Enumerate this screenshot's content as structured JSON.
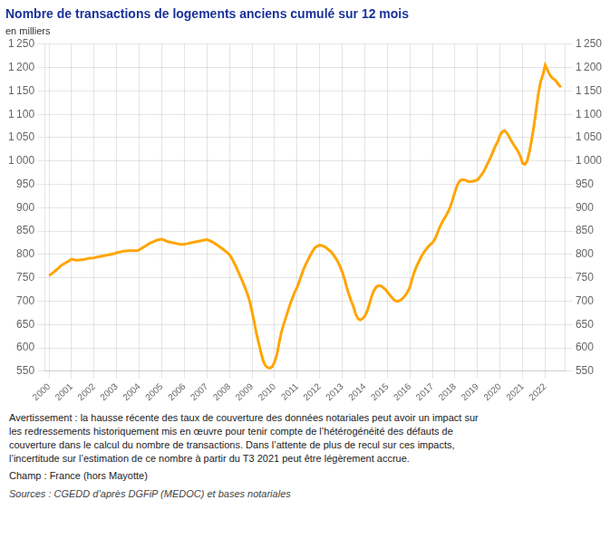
{
  "chart_data": {
    "type": "line",
    "title": "Nombre de transactions de logements anciens cumulé sur 12 mois",
    "ylabel": "en milliers",
    "annotations": [
      "Avertissement : la hausse récente des taux de couverture des données notariales peut avoir un impact sur\nles redressements historiquement mis en œuvre pour tenir compte de l’hétérogénéité des défauts de\ncouverture dans le calcul du nombre de transactions. Dans l’attente de plus de recul sur ces impacts,\nl’incertitude sur l’estimation de ce nombre à partir du T3 2021 peut être légèrement accrue.",
      "Champ : France (hors Mayotte)",
      "Sources : CGEDD d’après DGFiP (MEDOC) et bases notariales"
    ],
    "color": "#FFA500",
    "grid": true,
    "xlim": [
      1999.8,
      2022.9
    ],
    "xticks": [
      2000,
      2001,
      2002,
      2003,
      2004,
      2005,
      2006,
      2007,
      2008,
      2009,
      2010,
      2011,
      2012,
      2013,
      2014,
      2015,
      2016,
      2017,
      2018,
      2019,
      2020,
      2021,
      2022
    ],
    "ylim": [
      550,
      1250
    ],
    "yticks": [
      550,
      600,
      650,
      700,
      750,
      800,
      850,
      900,
      950,
      {
        "value": 1000,
        "label": "1 000"
      },
      {
        "value": 1050,
        "label": "1 050"
      },
      {
        "value": 1100,
        "label": "1 100"
      },
      {
        "value": 1150,
        "label": "1 150"
      },
      {
        "value": 1200,
        "label": "1 200"
      },
      {
        "value": 1250,
        "label": "1 250"
      }
    ],
    "y2lim": [
      550,
      1250
    ],
    "y2ticks": [
      550,
      600,
      650,
      700,
      750,
      800,
      850,
      900,
      950,
      {
        "value": 1000,
        "label": "1 000"
      },
      {
        "value": 1050,
        "label": "1 050"
      },
      {
        "value": 1100,
        "label": "1 100"
      },
      {
        "value": 1150,
        "label": "1 150"
      },
      {
        "value": 1200,
        "label": "1 200"
      },
      {
        "value": 1250,
        "label": "1 250"
      }
    ],
    "x": [
      2000.0,
      2000.1,
      2000.2,
      2000.3,
      2000.4,
      2000.5,
      2000.6,
      2000.7,
      2000.8,
      2000.9,
      2001.0,
      2001.1,
      2001.2,
      2001.3,
      2001.4,
      2001.5,
      2001.6,
      2001.7,
      2001.8,
      2001.9,
      2002.0,
      2002.1,
      2002.2,
      2002.3,
      2002.4,
      2002.5,
      2002.6,
      2002.7,
      2002.8,
      2002.9,
      2003.0,
      2003.1,
      2003.2,
      2003.3,
      2003.4,
      2003.5,
      2003.6,
      2003.7,
      2003.8,
      2003.9,
      2004.0,
      2004.1,
      2004.2,
      2004.3,
      2004.4,
      2004.5,
      2004.6,
      2004.7,
      2004.8,
      2004.9,
      2005.0,
      2005.1,
      2005.2,
      2005.3,
      2005.4,
      2005.5,
      2005.6,
      2005.7,
      2005.8,
      2005.9,
      2006.0,
      2006.1,
      2006.2,
      2006.3,
      2006.4,
      2006.5,
      2006.6,
      2006.7,
      2006.8,
      2006.9,
      2007.0,
      2007.1,
      2007.2,
      2007.3,
      2007.4,
      2007.5,
      2007.6,
      2007.7,
      2007.8,
      2007.9,
      2008.0,
      2008.1,
      2008.2,
      2008.3,
      2008.4,
      2008.5,
      2008.6,
      2008.7,
      2008.8,
      2008.9,
      2009.0,
      2009.1,
      2009.2,
      2009.3,
      2009.4,
      2009.5,
      2009.6,
      2009.7,
      2009.8,
      2009.9,
      2010.0,
      2010.1,
      2010.2,
      2010.3,
      2010.4,
      2010.5,
      2010.6,
      2010.7,
      2010.8,
      2010.9,
      2011.0,
      2011.1,
      2011.2,
      2011.3,
      2011.4,
      2011.5,
      2011.6,
      2011.7,
      2011.8,
      2011.9,
      2012.0,
      2012.1,
      2012.2,
      2012.3,
      2012.4,
      2012.5,
      2012.6,
      2012.7,
      2012.8,
      2012.9,
      2013.0,
      2013.1,
      2013.2,
      2013.3,
      2013.4,
      2013.5,
      2013.6,
      2013.7,
      2013.8,
      2013.9,
      2014.0,
      2014.1,
      2014.2,
      2014.3,
      2014.4,
      2014.5,
      2014.6,
      2014.7,
      2014.8,
      2014.9,
      2015.0,
      2015.1,
      2015.2,
      2015.3,
      2015.4,
      2015.5,
      2015.6,
      2015.7,
      2015.8,
      2015.9,
      2016.0,
      2016.1,
      2016.2,
      2016.3,
      2016.4,
      2016.5,
      2016.6,
      2016.7,
      2016.8,
      2016.9,
      2017.0,
      2017.1,
      2017.2,
      2017.3,
      2017.4,
      2017.5,
      2017.6,
      2017.7,
      2017.8,
      2017.9,
      2018.0,
      2018.1,
      2018.2,
      2018.3,
      2018.4,
      2018.5,
      2018.6,
      2018.7,
      2018.8,
      2018.9,
      2019.0,
      2019.1,
      2019.2,
      2019.3,
      2019.4,
      2019.5,
      2019.6,
      2019.7,
      2019.8,
      2019.9,
      2020.0,
      2020.1,
      2020.2,
      2020.3,
      2020.4,
      2020.5,
      2020.6,
      2020.7,
      2020.8,
      2020.9,
      2021.0,
      2021.1,
      2021.2,
      2021.3,
      2021.4,
      2021.5,
      2021.6,
      2021.7,
      2021.8,
      2021.9,
      2022.0,
      2022.1,
      2022.2,
      2022.3,
      2022.4,
      2022.5,
      2022.6,
      2022.7
    ],
    "values": [
      755,
      758,
      762,
      766,
      770,
      775,
      778,
      781,
      784,
      787,
      790,
      789,
      788,
      788,
      789,
      789,
      790,
      791,
      792,
      792,
      793,
      794,
      795,
      796,
      797,
      798,
      799,
      800,
      801,
      802,
      804,
      805,
      806,
      807,
      807,
      808,
      808,
      808,
      808,
      808,
      810,
      813,
      816,
      819,
      822,
      825,
      827,
      829,
      831,
      832,
      833,
      831,
      829,
      827,
      826,
      825,
      824,
      823,
      822,
      822,
      822,
      823,
      824,
      825,
      826,
      827,
      828,
      829,
      830,
      831,
      832,
      830,
      828,
      825,
      822,
      819,
      815,
      812,
      808,
      804,
      800,
      792,
      783,
      773,
      762,
      751,
      740,
      728,
      715,
      700,
      678,
      655,
      630,
      610,
      590,
      572,
      562,
      558,
      557,
      560,
      570,
      585,
      610,
      633,
      650,
      665,
      680,
      695,
      708,
      720,
      730,
      743,
      757,
      770,
      781,
      790,
      800,
      808,
      815,
      818,
      820,
      819,
      817,
      814,
      810,
      806,
      800,
      793,
      785,
      775,
      763,
      748,
      730,
      714,
      700,
      688,
      672,
      663,
      660,
      663,
      668,
      678,
      693,
      710,
      722,
      730,
      733,
      733,
      730,
      726,
      720,
      714,
      708,
      703,
      700,
      700,
      703,
      707,
      713,
      720,
      730,
      748,
      763,
      775,
      785,
      795,
      803,
      810,
      816,
      821,
      825,
      832,
      843,
      856,
      866,
      875,
      883,
      892,
      903,
      918,
      934,
      948,
      957,
      960,
      960,
      958,
      956,
      956,
      957,
      958,
      960,
      966,
      972,
      980,
      990,
      1000,
      1010,
      1022,
      1033,
      1042,
      1055,
      1063,
      1065,
      1060,
      1052,
      1043,
      1035,
      1028,
      1020,
      1010,
      995,
      993,
      1000,
      1020,
      1045,
      1075,
      1110,
      1145,
      1170,
      1185,
      1205,
      1195,
      1185,
      1178,
      1175,
      1170,
      1163,
      1158
    ]
  }
}
